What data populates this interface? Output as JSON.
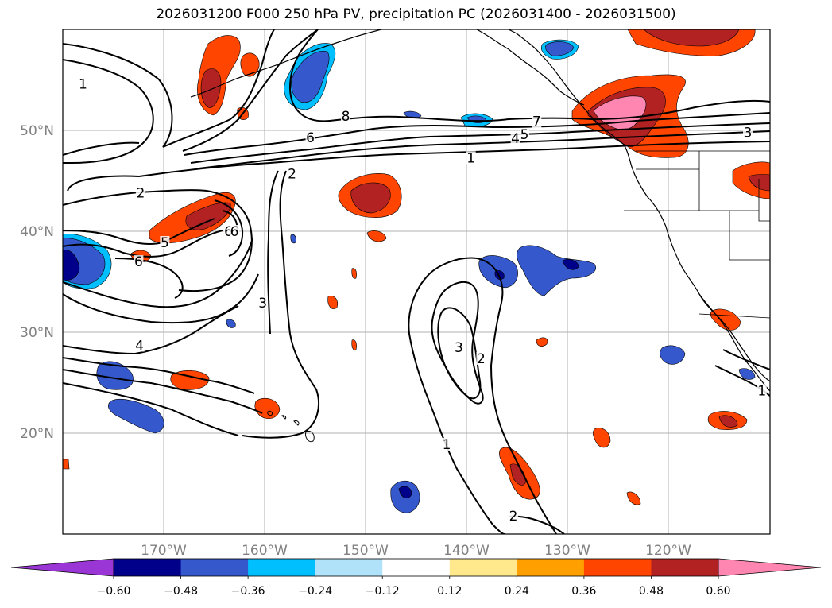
{
  "title": "2026031200 F000 250 hPa PV, precipitation PC (2026031400 - 2026031500)",
  "map": {
    "lon_range": [
      -180,
      -110
    ],
    "lat_range": [
      10,
      60
    ],
    "lat_ticks": [
      {
        "value": 20,
        "label": "20°N"
      },
      {
        "value": 30,
        "label": "30°N"
      },
      {
        "value": 40,
        "label": "40°N"
      },
      {
        "value": 50,
        "label": "50°N"
      }
    ],
    "lon_ticks": [
      {
        "value": -170,
        "label": "170°W"
      },
      {
        "value": -160,
        "label": "160°W"
      },
      {
        "value": -150,
        "label": "150°W"
      },
      {
        "value": -140,
        "label": "140°W"
      },
      {
        "value": -130,
        "label": "130°W"
      },
      {
        "value": -120,
        "label": "120°W"
      }
    ],
    "grid": true,
    "colors": {
      "grid": "#b0b0b0",
      "contour": "#000000",
      "coast": "#000000",
      "tick_label": "#808080"
    }
  },
  "colorbar": {
    "levels": [
      -0.6,
      -0.48,
      -0.36,
      -0.24,
      -0.12,
      0.12,
      0.24,
      0.36,
      0.48,
      0.6
    ],
    "labels": [
      "−0.60",
      "−0.48",
      "−0.36",
      "−0.24",
      "−0.12",
      "0.12",
      "0.24",
      "0.36",
      "0.48",
      "0.60"
    ],
    "under_color": "#9a35d6",
    "over_color": "#ff86b0",
    "colors": [
      "#00008b",
      "#3558cc",
      "#00bfff",
      "#b0e2fa",
      "#ffffff",
      "#ffe98c",
      "#ffa000",
      "#ff4500",
      "#b22222"
    ],
    "extend": "both"
  },
  "pv_contour_labels": [
    {
      "text": "1",
      "lon": -178.0,
      "lat": 54.6
    },
    {
      "text": "8",
      "lon": -152.0,
      "lat": 51.4
    },
    {
      "text": "6",
      "lon": -155.5,
      "lat": 49.3
    },
    {
      "text": "2",
      "lon": -157.3,
      "lat": 45.7
    },
    {
      "text": "7",
      "lon": -133.1,
      "lat": 50.9
    },
    {
      "text": "5",
      "lon": -134.3,
      "lat": 49.6
    },
    {
      "text": "4",
      "lon": -135.2,
      "lat": 49.2
    },
    {
      "text": "1",
      "lon": -139.6,
      "lat": 47.3
    },
    {
      "text": "3",
      "lon": -112.2,
      "lat": 49.8
    },
    {
      "text": "2",
      "lon": -172.3,
      "lat": 43.8
    },
    {
      "text": "6",
      "lon": -163.6,
      "lat": 40.0
    },
    {
      "text": "6",
      "lon": -163.0,
      "lat": 40.0
    },
    {
      "text": "5",
      "lon": -169.9,
      "lat": 38.9
    },
    {
      "text": "6",
      "lon": -172.5,
      "lat": 37.0
    },
    {
      "text": "3",
      "lon": -160.2,
      "lat": 32.9
    },
    {
      "text": "4",
      "lon": -172.4,
      "lat": 28.7
    },
    {
      "text": "3",
      "lon": -140.8,
      "lat": 28.5
    },
    {
      "text": "2",
      "lon": -138.6,
      "lat": 27.4
    },
    {
      "text": "1",
      "lon": -142.0,
      "lat": 18.9
    },
    {
      "text": "2",
      "lon": -135.4,
      "lat": 11.8
    },
    {
      "text": "1",
      "lon": -110.8,
      "lat": 24.2
    }
  ],
  "icons": {
    "colorbar_left_arrow": "triangle-left",
    "colorbar_right_arrow": "triangle-right"
  }
}
